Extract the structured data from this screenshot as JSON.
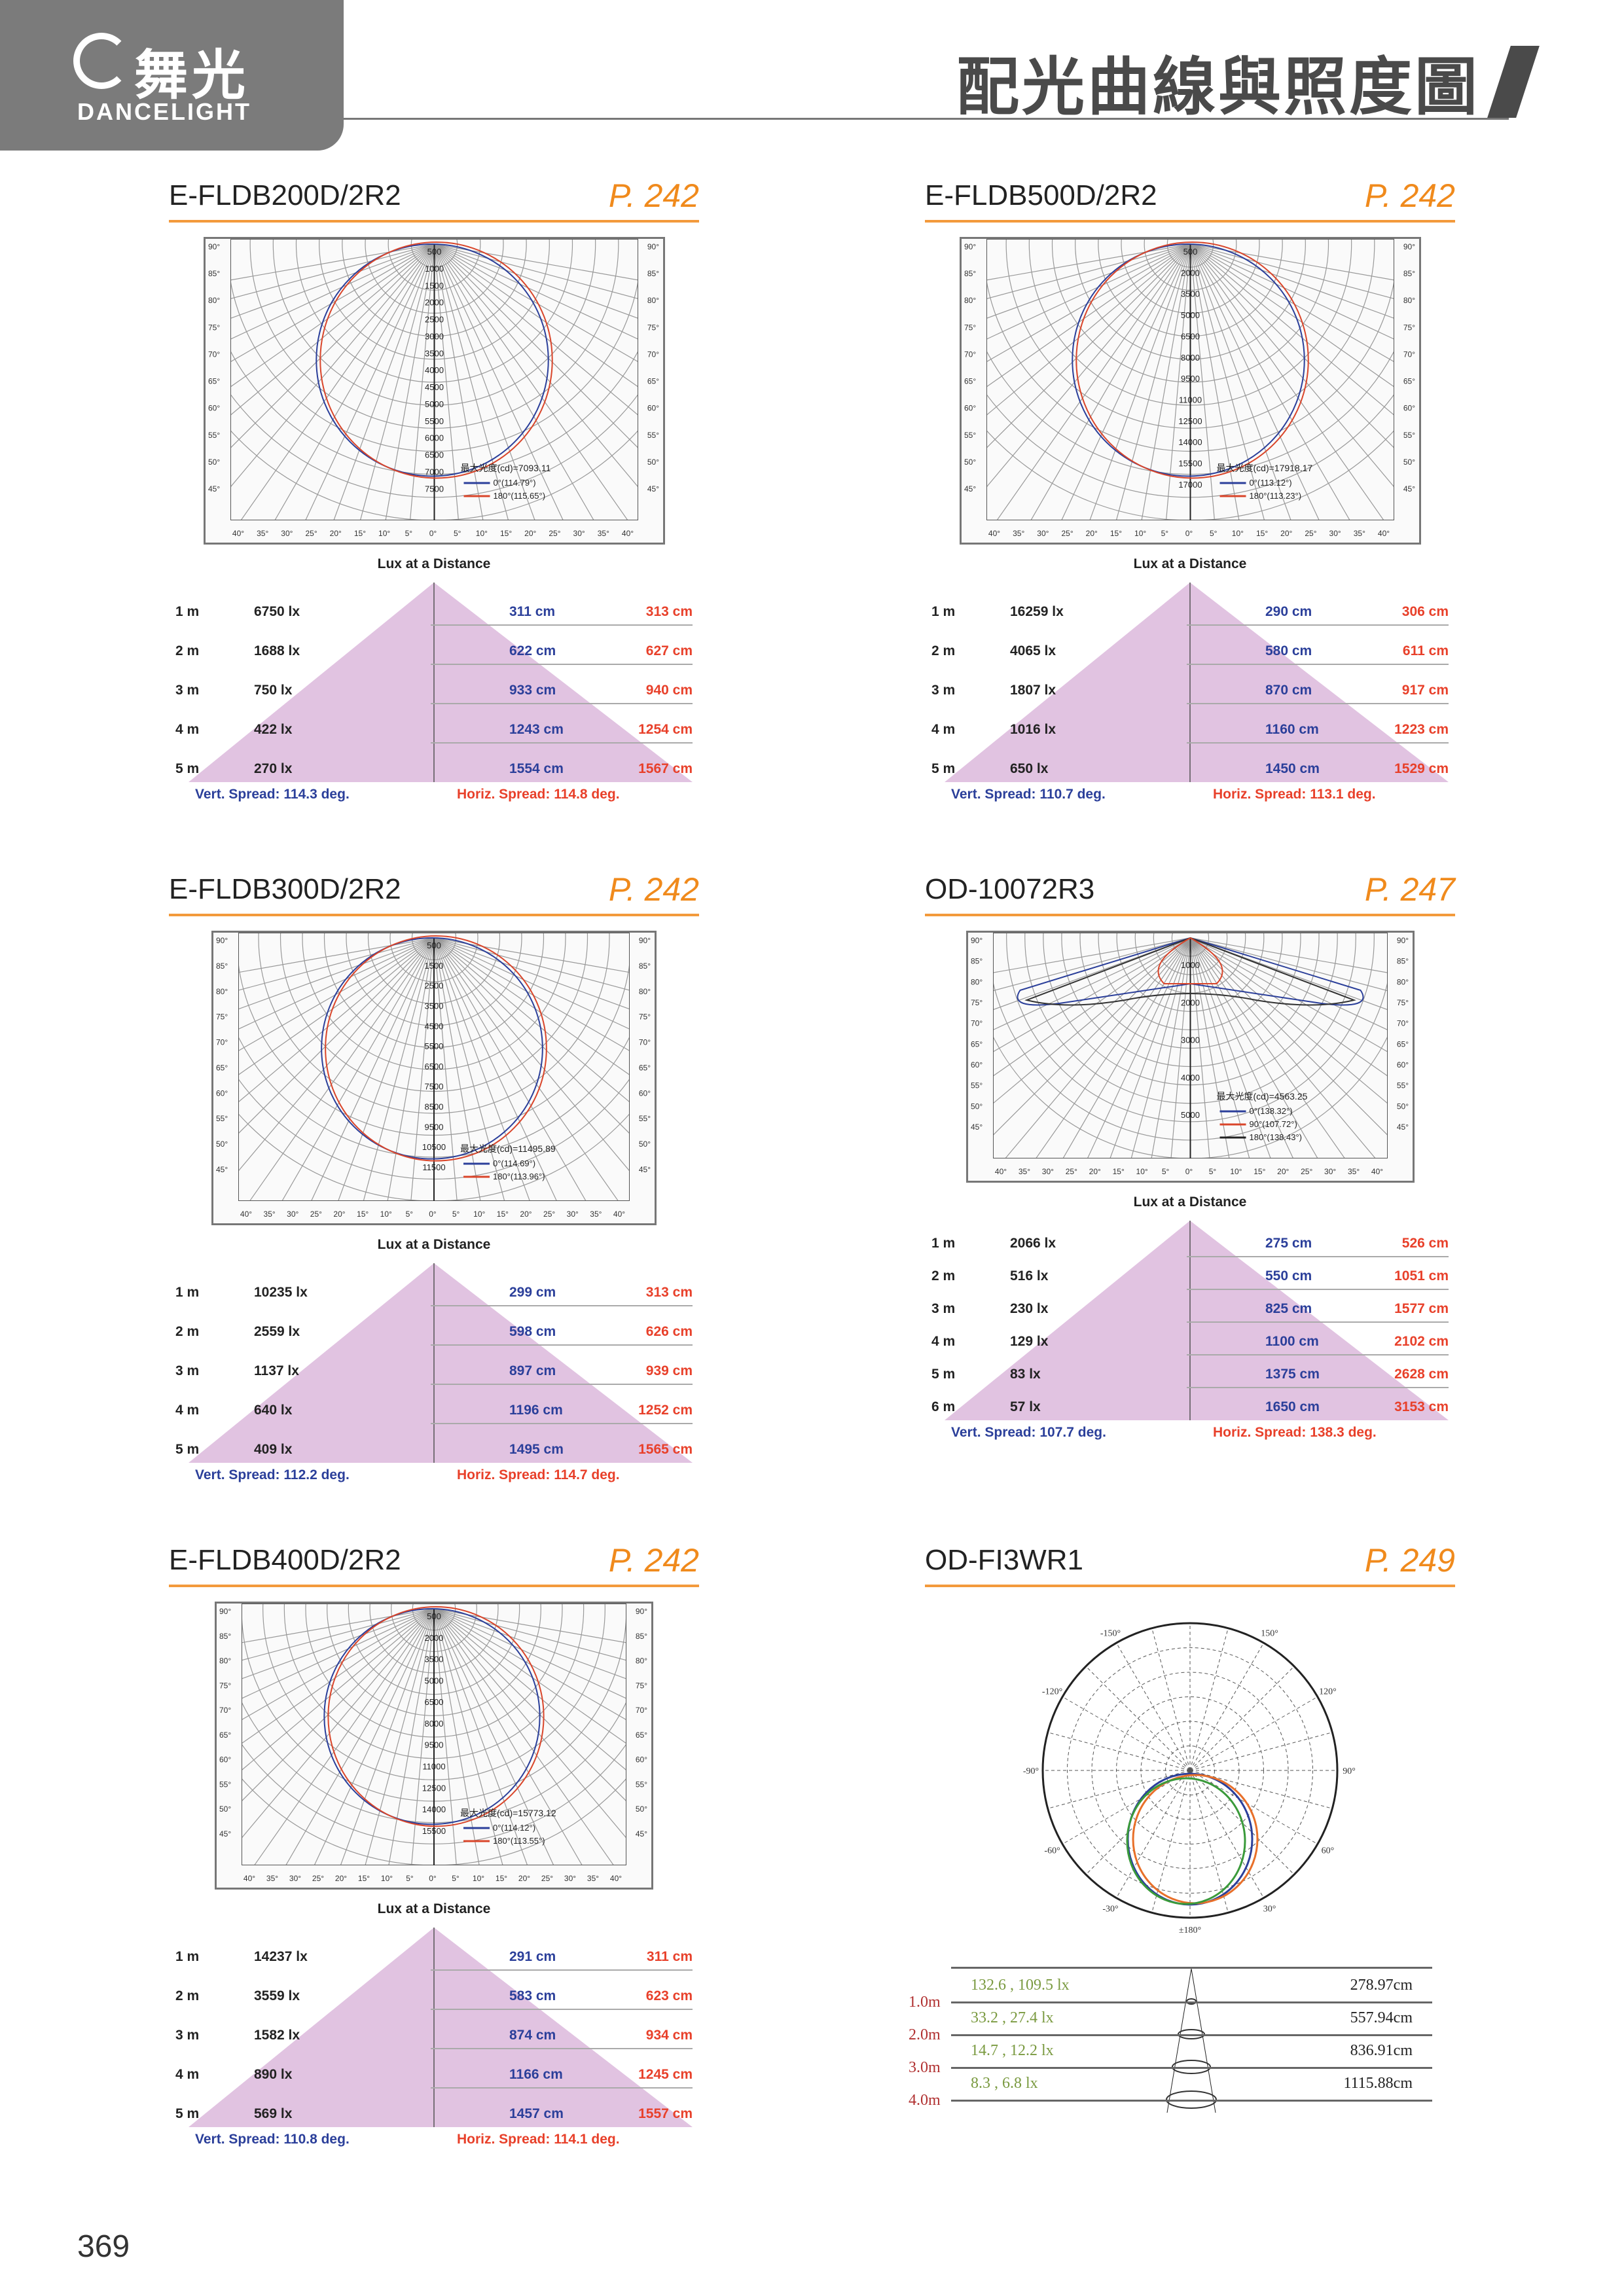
{
  "header": {
    "brand_cn": "舞光",
    "brand_en": "DANCELIGHT",
    "title": "配光曲線與照度圖"
  },
  "page_number": "369",
  "colors": {
    "accent": "#f39a3c",
    "vert": "#2b3f9a",
    "horiz": "#e8402a",
    "triangle": "#dcb8dc"
  },
  "panels": [
    {
      "name": "E-FLDB200D/2R2",
      "page": "P. 242",
      "polar": {
        "scale": [
          "500",
          "1000",
          "1500",
          "2000",
          "2500",
          "3000",
          "3500",
          "4000",
          "4500",
          "5000",
          "5500",
          "6000",
          "6500",
          "7000",
          "7500"
        ],
        "max": "最大光度(cd)=7093.11",
        "c0": "0°(114.79°)",
        "c180": "180°(115.65°)"
      },
      "lux": {
        "title": "Lux at a Distance",
        "rows": [
          [
            "1 m",
            "6750 lx",
            "311 cm",
            "313 cm"
          ],
          [
            "2 m",
            "1688 lx",
            "622 cm",
            "627 cm"
          ],
          [
            "3 m",
            "750 lx",
            "933 cm",
            "940 cm"
          ],
          [
            "4 m",
            "422 lx",
            "1243 cm",
            "1254 cm"
          ],
          [
            "5 m",
            "270 lx",
            "1554 cm",
            "1567 cm"
          ]
        ],
        "vert": "Vert. Spread: 114.3 deg.",
        "horiz": "Horiz. Spread: 114.8 deg."
      }
    },
    {
      "name": "E-FLDB500D/2R2",
      "page": "P. 242",
      "polar": {
        "scale": [
          "500",
          "2000",
          "3500",
          "5000",
          "6500",
          "8000",
          "9500",
          "11000",
          "12500",
          "14000",
          "15500",
          "17000"
        ],
        "max": "最大光度(cd)=17918.17",
        "c0": "0°(113.12°)",
        "c180": "180°(113.23°)"
      },
      "lux": {
        "title": "Lux at a Distance",
        "rows": [
          [
            "1 m",
            "16259 lx",
            "290 cm",
            "306 cm"
          ],
          [
            "2 m",
            "4065 lx",
            "580 cm",
            "611 cm"
          ],
          [
            "3 m",
            "1807 lx",
            "870 cm",
            "917 cm"
          ],
          [
            "4 m",
            "1016 lx",
            "1160 cm",
            "1223 cm"
          ],
          [
            "5 m",
            "650 lx",
            "1450 cm",
            "1529 cm"
          ]
        ],
        "vert": "Vert. Spread: 110.7 deg.",
        "horiz": "Horiz. Spread: 113.1 deg."
      }
    },
    {
      "name": "E-FLDB300D/2R2",
      "page": "P. 242",
      "polar": {
        "scale": [
          "500",
          "1500",
          "2500",
          "3500",
          "4500",
          "5500",
          "6500",
          "7500",
          "8500",
          "9500",
          "10500",
          "11500"
        ],
        "max": "最大光度(cd)=11495.89",
        "c0": "0°(114.69°)",
        "c180": "180°(113.96°)"
      },
      "lux": {
        "title": "Lux at a Distance",
        "rows": [
          [
            "1 m",
            "10235 lx",
            "299 cm",
            "313 cm"
          ],
          [
            "2 m",
            "2559 lx",
            "598 cm",
            "626 cm"
          ],
          [
            "3 m",
            "1137 lx",
            "897 cm",
            "939 cm"
          ],
          [
            "4 m",
            "640 lx",
            "1196 cm",
            "1252 cm"
          ],
          [
            "5 m",
            "409 lx",
            "1495 cm",
            "1565 cm"
          ]
        ],
        "vert": "Vert. Spread: 112.2 deg.",
        "horiz": "Horiz. Spread: 114.7 deg."
      }
    },
    {
      "name": "OD-10072R3",
      "page": "P. 247",
      "polar": {
        "scale": [
          "1000",
          "2000",
          "3000",
          "4000",
          "5000"
        ],
        "max": "最大光度(cd)=4563.25",
        "c0": "0°(138.32°)",
        "c90": "90°(107.72°)",
        "c180": "180°(138.43°)"
      },
      "lux": {
        "title": "Lux at a Distance",
        "rows": [
          [
            "1 m",
            "2066 lx",
            "275 cm",
            "526 cm"
          ],
          [
            "2 m",
            "516 lx",
            "550 cm",
            "1051 cm"
          ],
          [
            "3 m",
            "230 lx",
            "825 cm",
            "1577 cm"
          ],
          [
            "4 m",
            "129 lx",
            "1100 cm",
            "2102 cm"
          ],
          [
            "5 m",
            "83 lx",
            "1375 cm",
            "2628 cm"
          ],
          [
            "6 m",
            "57 lx",
            "1650 cm",
            "3153 cm"
          ]
        ],
        "vert": "Vert. Spread: 107.7 deg.",
        "horiz": "Horiz. Spread: 138.3 deg."
      }
    },
    {
      "name": "E-FLDB400D/2R2",
      "page": "P. 242",
      "polar": {
        "scale": [
          "500",
          "2000",
          "3500",
          "5000",
          "6500",
          "8000",
          "9500",
          "11000",
          "12500",
          "14000",
          "15500"
        ],
        "max": "最大光度(cd)=15773.12",
        "c0": "0°(114.12°)",
        "c180": "180°(113.55°)"
      },
      "lux": {
        "title": "Lux at a Distance",
        "rows": [
          [
            "1 m",
            "14237 lx",
            "291 cm",
            "311 cm"
          ],
          [
            "2 m",
            "3559 lx",
            "583 cm",
            "623 cm"
          ],
          [
            "3 m",
            "1582 lx",
            "874 cm",
            "934 cm"
          ],
          [
            "4 m",
            "890 lx",
            "1166 cm",
            "1245 cm"
          ],
          [
            "5 m",
            "569 lx",
            "1457 cm",
            "1557 cm"
          ]
        ],
        "vert": "Vert. Spread: 110.8 deg.",
        "horiz": "Horiz. Spread: 114.1 deg."
      }
    },
    {
      "name": "OD-FI3WR1",
      "page": "P. 249",
      "circular": {
        "angles": [
          "±180°",
          "-150°",
          "150°",
          "-120°",
          "120°",
          "-90°",
          "90°",
          "-60°",
          "60°",
          "-30°",
          "30°"
        ]
      },
      "cone": {
        "rows": [
          [
            "1.0m",
            "132.6 , 109.5 lx",
            "278.97cm"
          ],
          [
            "2.0m",
            "33.2 , 27.4 lx",
            "557.94cm"
          ],
          [
            "3.0m",
            "14.7 , 12.2 lx",
            "836.91cm"
          ],
          [
            "4.0m",
            "8.3 , 6.8 lx",
            "1115.88cm"
          ]
        ]
      }
    }
  ],
  "angle_labels": {
    "side": [
      "90°",
      "85°",
      "80°",
      "75°",
      "70°",
      "65°",
      "60°",
      "55°",
      "50°",
      "45°"
    ],
    "bottom": [
      "40°",
      "35°",
      "30°",
      "25°",
      "20°",
      "15°",
      "10°",
      "5°",
      "0°",
      "5°",
      "10°",
      "15°",
      "20°",
      "25°",
      "30°",
      "35°",
      "40°"
    ]
  }
}
